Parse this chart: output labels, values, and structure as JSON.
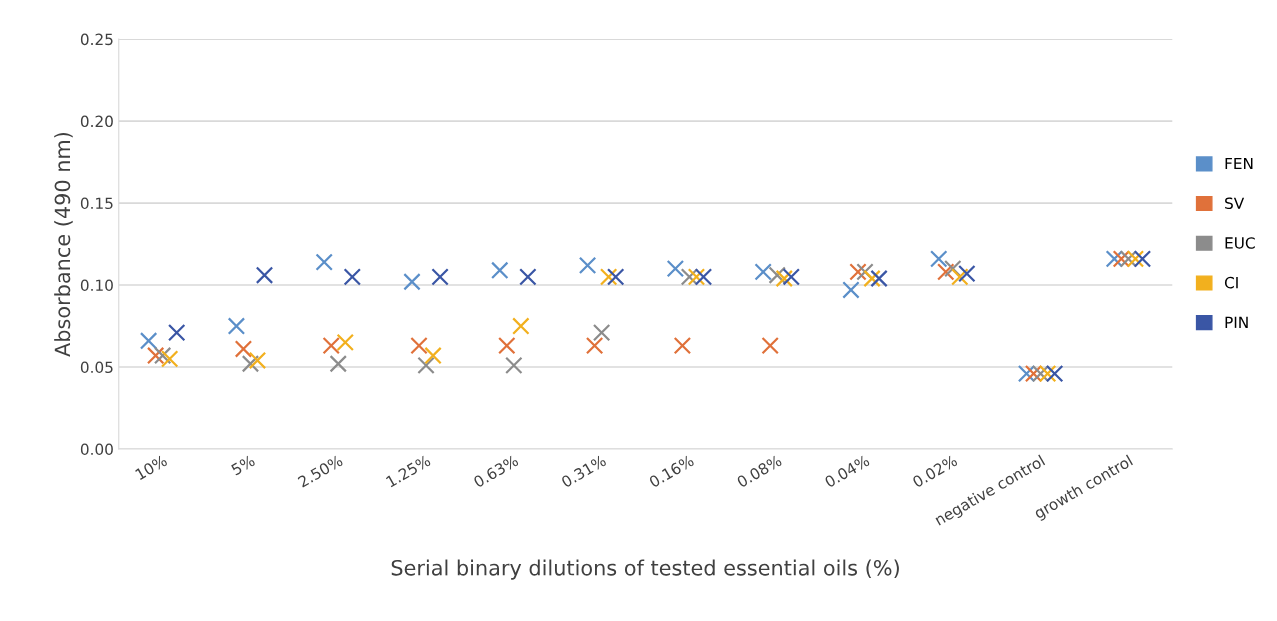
{
  "chart_data": {
    "type": "scatter",
    "xlabel": "Serial binary dilutions of tested essential oils (%)",
    "ylabel": "Absorbance (490 nm)",
    "categories": [
      "10%",
      "5%",
      "2.50%",
      "1.25%",
      "0.63%",
      "0.31%",
      "0.16%",
      "0.08%",
      "0.04%",
      "0.02%",
      "negative control",
      "growth control"
    ],
    "series": [
      {
        "name": "FEN",
        "color": "#5b8fc9",
        "values": [
          0.066,
          0.075,
          0.114,
          0.102,
          0.109,
          0.112,
          0.11,
          0.108,
          0.097,
          0.116,
          0.046,
          0.116
        ]
      },
      {
        "name": "SV",
        "color": "#e0713a",
        "values": [
          0.057,
          0.061,
          0.063,
          0.063,
          0.063,
          0.063,
          0.063,
          0.063,
          0.108,
          0.108,
          0.046,
          0.116
        ]
      },
      {
        "name": "EUC",
        "color": "#8c8c8c",
        "values": [
          0.057,
          0.052,
          0.052,
          0.051,
          0.051,
          0.071,
          0.105,
          0.106,
          0.108,
          0.11,
          0.046,
          0.116
        ]
      },
      {
        "name": "CI",
        "color": "#f2b01e",
        "values": [
          0.055,
          0.054,
          0.065,
          0.057,
          0.075,
          0.105,
          0.105,
          0.104,
          0.104,
          0.105,
          0.046,
          0.116
        ]
      },
      {
        "name": "PIN",
        "color": "#3a56a5",
        "values": [
          0.071,
          0.106,
          0.105,
          0.105,
          0.105,
          0.105,
          0.105,
          0.105,
          0.104,
          0.107,
          0.046,
          0.116
        ]
      }
    ],
    "ylim": [
      0,
      0.25
    ],
    "yticks": [
      {
        "value": 0,
        "label": "0.00"
      },
      {
        "value": 0.05,
        "label": "0.05"
      },
      {
        "value": 0.1,
        "label": "0.10"
      },
      {
        "value": 0.15,
        "label": "0.15"
      },
      {
        "value": 0.2,
        "label": "0.20"
      },
      {
        "value": 0.25,
        "label": "0.25"
      }
    ],
    "grid": "y",
    "legend": "right",
    "marker": "cross"
  }
}
